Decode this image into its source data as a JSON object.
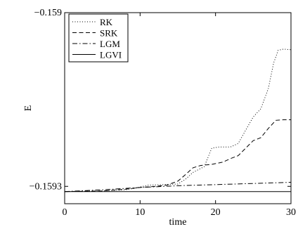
{
  "chart_data": {
    "type": "line",
    "xlabel": "time",
    "ylabel": "E",
    "xlim": [
      0,
      30
    ],
    "ylim": [
      -0.15933,
      -0.159
    ],
    "x_ticks": [
      {
        "value": 0,
        "label": "0"
      },
      {
        "value": 10,
        "label": "10"
      },
      {
        "value": 20,
        "label": "20"
      },
      {
        "value": 30,
        "label": "30"
      }
    ],
    "y_ticks": [
      {
        "value": -0.159,
        "label": "−0.159"
      },
      {
        "value": -0.1593,
        "label": "−0.1593"
      }
    ],
    "grid": false,
    "legend_position": "top-left",
    "series": [
      {
        "name": "RK",
        "style": "dotted",
        "color": "#000000",
        "points": [
          [
            0,
            -0.159309
          ],
          [
            5,
            -0.159308
          ],
          [
            8,
            -0.159306
          ],
          [
            9.5,
            -0.159303
          ],
          [
            11,
            -0.159298
          ],
          [
            13,
            -0.159297
          ],
          [
            15,
            -0.159296
          ],
          [
            16,
            -0.159288
          ],
          [
            17,
            -0.159276
          ],
          [
            18.5,
            -0.159266
          ],
          [
            19.5,
            -0.159234
          ],
          [
            20.5,
            -0.159232
          ],
          [
            22,
            -0.159232
          ],
          [
            23,
            -0.159226
          ],
          [
            24,
            -0.159203
          ],
          [
            25,
            -0.15918
          ],
          [
            26,
            -0.159166
          ],
          [
            27,
            -0.159131
          ],
          [
            27.7,
            -0.159087
          ],
          [
            28.3,
            -0.159065
          ],
          [
            29,
            -0.159063
          ],
          [
            30,
            -0.159064
          ]
        ]
      },
      {
        "name": "SRK",
        "style": "dashed",
        "color": "#000000",
        "points": [
          [
            0,
            -0.159309
          ],
          [
            5,
            -0.159308
          ],
          [
            8,
            -0.159305
          ],
          [
            10,
            -0.159302
          ],
          [
            12,
            -0.1593
          ],
          [
            13.5,
            -0.159298
          ],
          [
            15,
            -0.159291
          ],
          [
            16,
            -0.15928
          ],
          [
            17,
            -0.159268
          ],
          [
            18,
            -0.159264
          ],
          [
            19.5,
            -0.159262
          ],
          [
            21,
            -0.159258
          ],
          [
            22,
            -0.159252
          ],
          [
            23,
            -0.159247
          ],
          [
            24,
            -0.159234
          ],
          [
            25,
            -0.159221
          ],
          [
            26,
            -0.159216
          ],
          [
            27,
            -0.1592
          ],
          [
            28,
            -0.159186
          ],
          [
            29,
            -0.159185
          ],
          [
            30,
            -0.159185
          ]
        ]
      },
      {
        "name": "LGM",
        "style": "dashdot",
        "color": "#000000",
        "points": [
          [
            0,
            -0.159309
          ],
          [
            5,
            -0.159306
          ],
          [
            10,
            -0.159302
          ],
          [
            15,
            -0.159299
          ],
          [
            20,
            -0.159297
          ],
          [
            25,
            -0.159295
          ],
          [
            30,
            -0.159293
          ]
        ]
      },
      {
        "name": "LGVI",
        "style": "solid",
        "color": "#000000",
        "points": [
          [
            0,
            -0.159309
          ],
          [
            30,
            -0.159309
          ]
        ]
      }
    ]
  }
}
